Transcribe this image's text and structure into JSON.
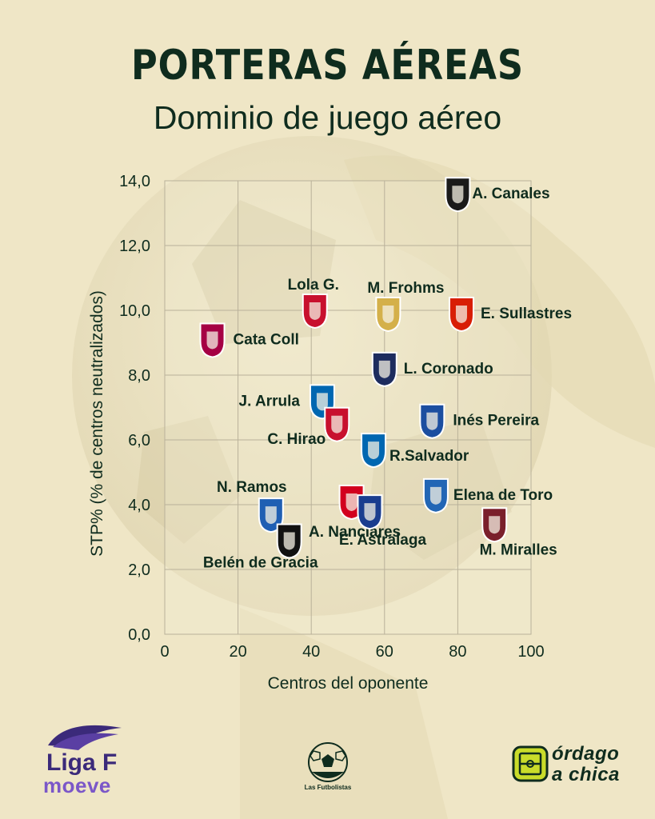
{
  "header": {
    "title": "PORTERAS AÉREAS",
    "subtitle": "Dominio de juego aéreo"
  },
  "colors": {
    "background": "#efe6c6",
    "text": "#0f2c1e",
    "grid": "#b9b19a"
  },
  "chart_data": {
    "type": "scatter",
    "xlabel": "Centros del oponente",
    "ylabel": "STP% (% de centros neutralizados)",
    "xlim": [
      0,
      100
    ],
    "ylim": [
      0,
      14
    ],
    "xticks": [
      "0",
      "20",
      "40",
      "60",
      "80",
      "100"
    ],
    "yticks": [
      "0,0",
      "2,0",
      "4,0",
      "6,0",
      "8,0",
      "10,0",
      "12,0",
      "14,0"
    ],
    "grid": true,
    "points": [
      {
        "label": "A. Canales",
        "x": 80,
        "y": 13.6,
        "logo": "crest-dark-ring",
        "color": "#1a1a1a"
      },
      {
        "label": "Lola G.",
        "x": 41,
        "y": 10.0,
        "logo": "crest-atletico",
        "color": "#c8102e"
      },
      {
        "label": "M. Frohms",
        "x": 61,
        "y": 9.9,
        "logo": "crest-real-madrid",
        "color": "#d4b04a"
      },
      {
        "label": "E. Sullastres",
        "x": 81,
        "y": 9.9,
        "logo": "crest-sevilla",
        "color": "#d81e05"
      },
      {
        "label": "Cata Coll",
        "x": 13,
        "y": 9.1,
        "logo": "crest-barcelona",
        "color": "#a50044"
      },
      {
        "label": "L. Coronado",
        "x": 60,
        "y": 8.2,
        "logo": "crest-levante",
        "color": "#1d2c5e"
      },
      {
        "label": "J. Arrula",
        "x": 43,
        "y": 7.2,
        "logo": "crest-real-sociedad",
        "color": "#0067b1"
      },
      {
        "label": "Inés Pereira",
        "x": 73,
        "y": 6.6,
        "logo": "crest-deportivo",
        "color": "#1b4ea0"
      },
      {
        "label": "C. Hirao",
        "x": 47,
        "y": 6.5,
        "logo": "crest-granada",
        "color": "#c8102e"
      },
      {
        "label": "R.Salvador",
        "x": 57,
        "y": 5.7,
        "logo": "crest-espanyol",
        "color": "#0067b1"
      },
      {
        "label": "A. Nanclares",
        "x": 51,
        "y": 4.1,
        "logo": "crest-athletic",
        "color": "#d2001e"
      },
      {
        "label": "Elena de Toro",
        "x": 74,
        "y": 4.3,
        "logo": "crest-alhama",
        "color": "#2266b5"
      },
      {
        "label": "E. Astralaga",
        "x": 56,
        "y": 3.8,
        "logo": "crest-eibar",
        "color": "#1a3d8f"
      },
      {
        "label": "N. Ramos",
        "x": 29,
        "y": 3.7,
        "logo": "crest-tenerife",
        "color": "#1f5fb3"
      },
      {
        "label": "M. Miralles",
        "x": 90,
        "y": 3.4,
        "logo": "crest-dux",
        "color": "#7a1f2b"
      },
      {
        "label": "Belén de Gracia",
        "x": 34,
        "y": 2.9,
        "logo": "crest-madrid-cff",
        "color": "#111111"
      }
    ]
  },
  "footer": {
    "ligaf_line1": "Liga F",
    "ligaf_line2": "moeve",
    "futbolistas": "Las Futbolistas",
    "ordago_line1": "órdago",
    "ordago_line2": "a chica"
  }
}
